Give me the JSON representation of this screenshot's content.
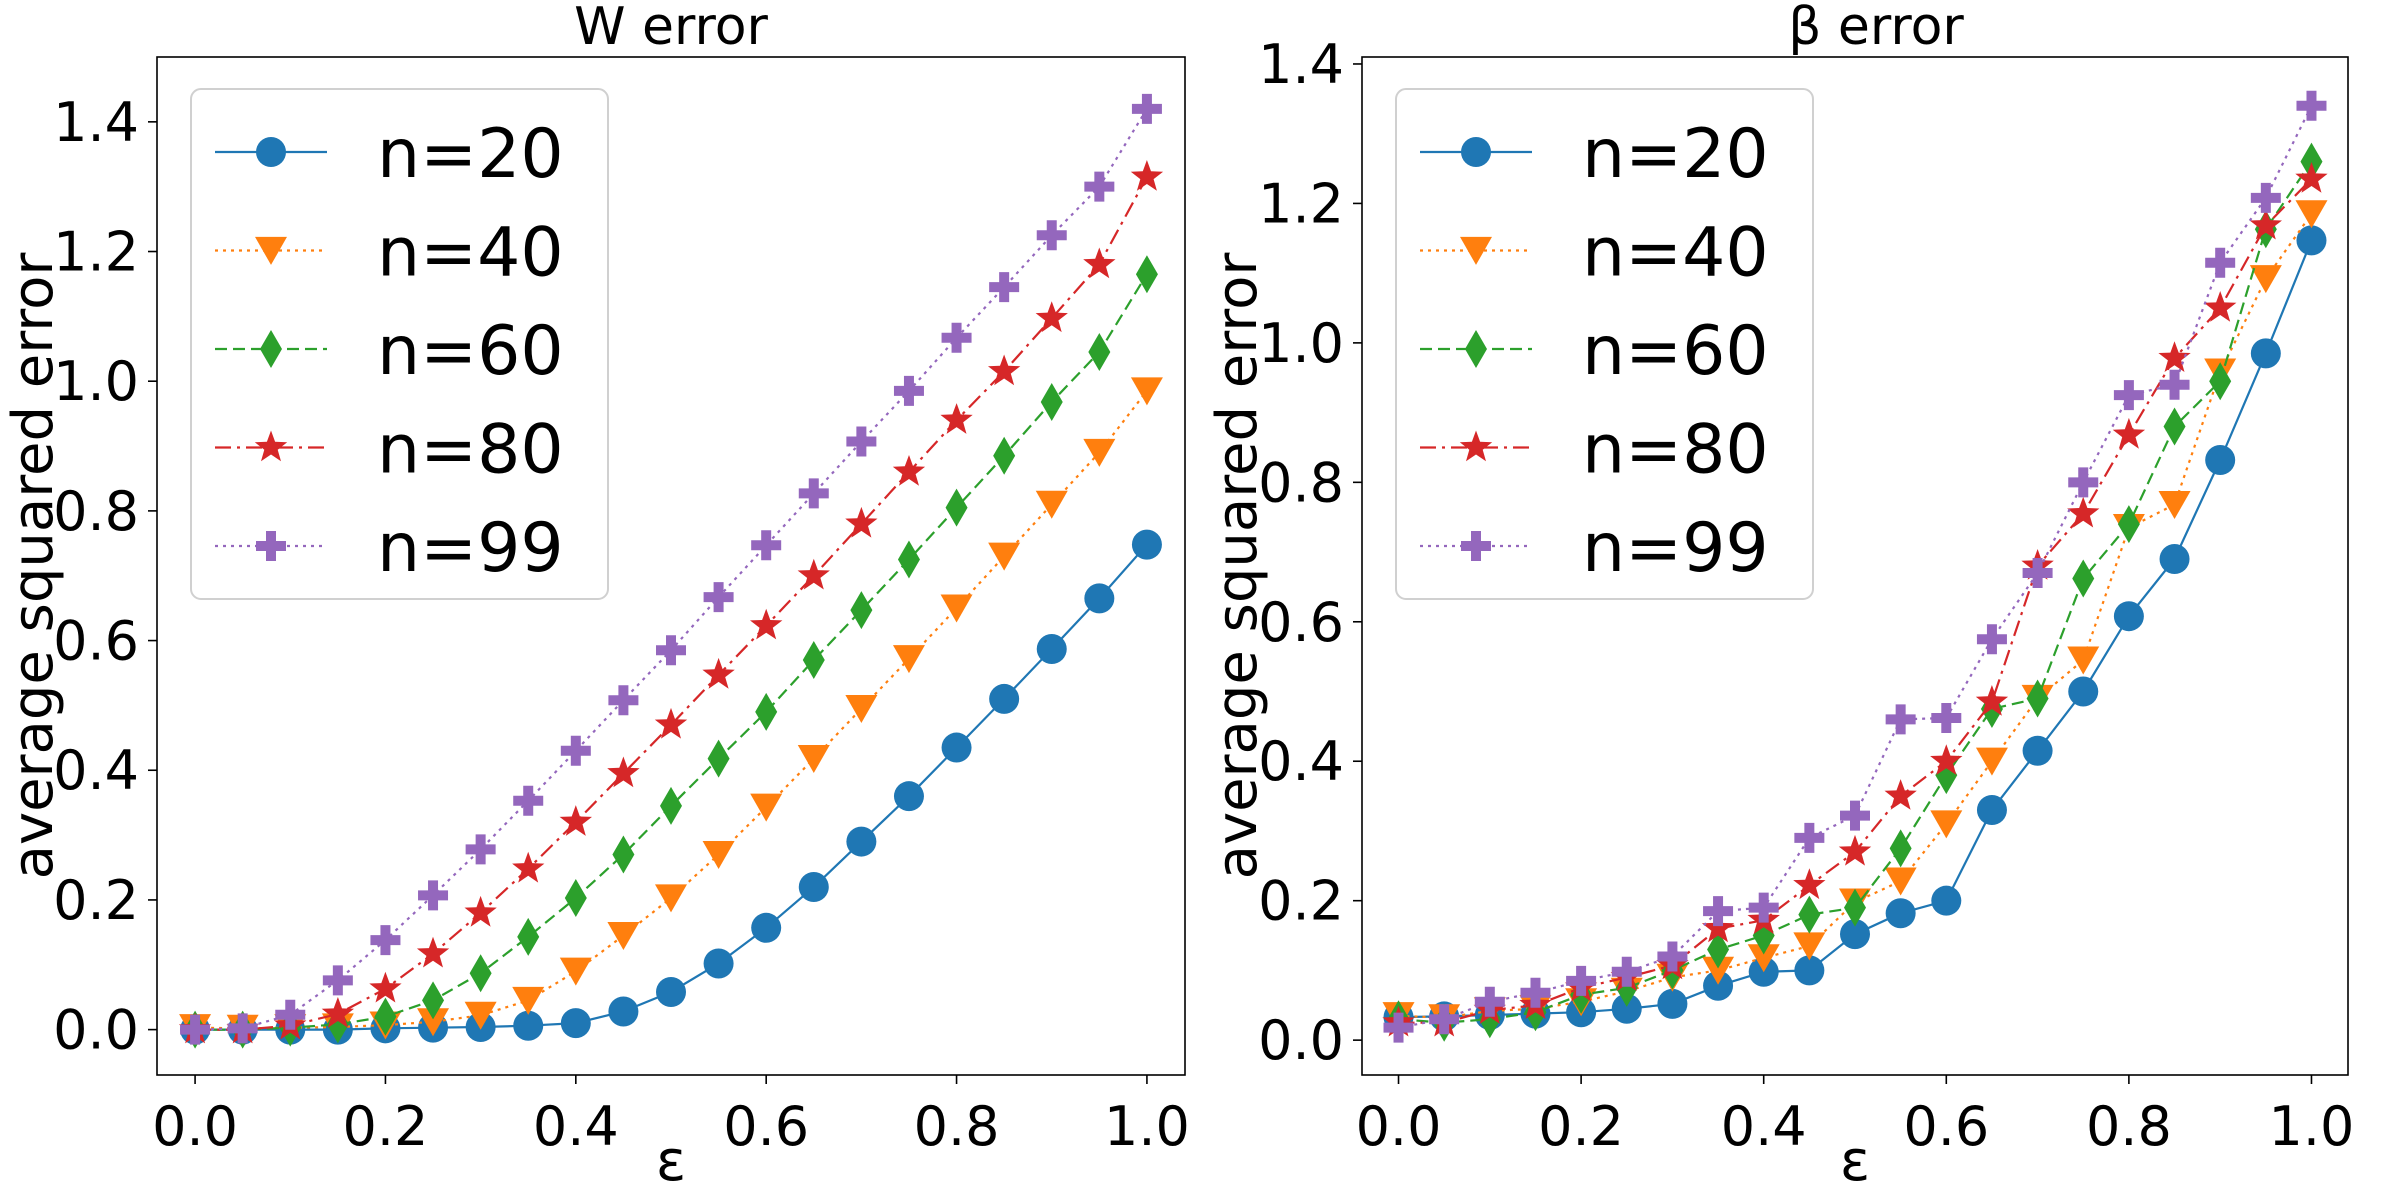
{
  "chart_data": [
    {
      "type": "line",
      "title": "W error",
      "xlabel": "ε",
      "ylabel": "average squared error",
      "xlim": [
        -0.04,
        1.04
      ],
      "ylim": [
        -0.07,
        1.5
      ],
      "xticks": [
        0.0,
        0.2,
        0.4,
        0.6,
        0.8,
        1.0
      ],
      "xtick_labels": [
        "0.0",
        "0.2",
        "0.4",
        "0.6",
        "0.8",
        "1.0"
      ],
      "yticks": [
        0.0,
        0.2,
        0.4,
        0.6,
        0.8,
        1.0,
        1.2,
        1.4
      ],
      "ytick_labels": [
        "0.0",
        "0.2",
        "0.4",
        "0.6",
        "0.8",
        "1.0",
        "1.2",
        "1.4"
      ],
      "grid": false,
      "legend_position": "top-left",
      "x": [
        0.0,
        0.05,
        0.1,
        0.15,
        0.2,
        0.25,
        0.3,
        0.35,
        0.4,
        0.45,
        0.5,
        0.55,
        0.6,
        0.65,
        0.7,
        0.75,
        0.8,
        0.85,
        0.9,
        0.95,
        1.0
      ],
      "series": [
        {
          "name": "n=20",
          "color": "#1f77b4",
          "marker": "circle",
          "linestyle": "solid",
          "values": [
            0.0,
            0.0,
            0.0,
            0.0,
            0.002,
            0.003,
            0.004,
            0.006,
            0.01,
            0.028,
            0.058,
            0.102,
            0.157,
            0.22,
            0.29,
            0.36,
            0.435,
            0.51,
            0.587,
            0.665,
            0.748
          ]
        },
        {
          "name": "n=40",
          "color": "#ff7f0e",
          "marker": "triangle-down",
          "linestyle": "dotted",
          "values": [
            0.003,
            0.002,
            0.003,
            0.004,
            0.007,
            0.012,
            0.022,
            0.045,
            0.09,
            0.145,
            0.203,
            0.27,
            0.343,
            0.418,
            0.495,
            0.572,
            0.65,
            0.73,
            0.81,
            0.89,
            0.985
          ]
        },
        {
          "name": "n=60",
          "color": "#2ca02c",
          "marker": "thin-diamond",
          "linestyle": "dashed",
          "values": [
            0.0,
            0.0,
            0.003,
            0.008,
            0.02,
            0.045,
            0.087,
            0.143,
            0.203,
            0.27,
            0.345,
            0.418,
            0.49,
            0.57,
            0.647,
            0.725,
            0.805,
            0.885,
            0.968,
            1.045,
            1.165
          ]
        },
        {
          "name": "n=80",
          "color": "#d62728",
          "marker": "star",
          "linestyle": "dashdot",
          "values": [
            0.0,
            0.0,
            0.006,
            0.024,
            0.063,
            0.117,
            0.18,
            0.248,
            0.32,
            0.395,
            0.47,
            0.547,
            0.623,
            0.7,
            0.78,
            0.86,
            0.94,
            1.015,
            1.097,
            1.18,
            1.315
          ]
        },
        {
          "name": "n=99",
          "color": "#9467bd",
          "marker": "plus-filled",
          "linestyle": "dotted",
          "values": [
            0.0,
            0.002,
            0.023,
            0.076,
            0.138,
            0.207,
            0.278,
            0.353,
            0.43,
            0.508,
            0.585,
            0.667,
            0.747,
            0.827,
            0.907,
            0.985,
            1.067,
            1.145,
            1.225,
            1.3,
            1.42
          ]
        }
      ]
    },
    {
      "type": "line",
      "title": "β error",
      "xlabel": "ε",
      "ylabel": "average squared error",
      "xlim": [
        -0.04,
        1.04
      ],
      "ylim": [
        -0.05,
        1.41
      ],
      "xticks": [
        0.0,
        0.2,
        0.4,
        0.6,
        0.8,
        1.0
      ],
      "xtick_labels": [
        "0.0",
        "0.2",
        "0.4",
        "0.6",
        "0.8",
        "1.0"
      ],
      "yticks": [
        0.0,
        0.2,
        0.4,
        0.6,
        0.8,
        1.0,
        1.2,
        1.4
      ],
      "ytick_labels": [
        "0.0",
        "0.2",
        "0.4",
        "0.6",
        "0.8",
        "1.0",
        "1.2",
        "1.4"
      ],
      "grid": false,
      "legend_position": "top-left",
      "x": [
        0.0,
        0.05,
        0.1,
        0.15,
        0.2,
        0.25,
        0.3,
        0.35,
        0.4,
        0.45,
        0.5,
        0.55,
        0.6,
        0.65,
        0.7,
        0.75,
        0.8,
        0.85,
        0.9,
        0.95,
        1.0
      ],
      "series": [
        {
          "name": "n=20",
          "color": "#1f77b4",
          "marker": "circle",
          "linestyle": "solid",
          "values": [
            0.033,
            0.034,
            0.036,
            0.038,
            0.04,
            0.045,
            0.052,
            0.078,
            0.098,
            0.1,
            0.152,
            0.182,
            0.2,
            0.33,
            0.415,
            0.5,
            0.608,
            0.69,
            0.832,
            0.985,
            1.147
          ]
        },
        {
          "name": "n=40",
          "color": "#ff7f0e",
          "marker": "triangle-down",
          "linestyle": "dotted",
          "values": [
            0.035,
            0.032,
            0.042,
            0.045,
            0.055,
            0.07,
            0.09,
            0.1,
            0.118,
            0.135,
            0.198,
            0.228,
            0.31,
            0.4,
            0.49,
            0.545,
            0.735,
            0.768,
            0.958,
            1.092,
            1.185
          ]
        },
        {
          "name": "n=60",
          "color": "#2ca02c",
          "marker": "thin-diamond",
          "linestyle": "dashed",
          "values": [
            0.03,
            0.025,
            0.03,
            0.04,
            0.065,
            0.075,
            0.1,
            0.13,
            0.15,
            0.18,
            0.19,
            0.275,
            0.38,
            0.475,
            0.49,
            0.662,
            0.74,
            0.88,
            0.945,
            1.163,
            1.26
          ]
        },
        {
          "name": "n=80",
          "color": "#d62728",
          "marker": "star",
          "linestyle": "dashdot",
          "values": [
            0.025,
            0.025,
            0.043,
            0.05,
            0.075,
            0.09,
            0.107,
            0.16,
            0.172,
            0.222,
            0.27,
            0.35,
            0.4,
            0.485,
            0.68,
            0.755,
            0.868,
            0.978,
            1.05,
            1.168,
            1.235
          ]
        },
        {
          "name": "n=99",
          "color": "#9467bd",
          "marker": "plus-filled",
          "linestyle": "dotted",
          "values": [
            0.018,
            0.03,
            0.055,
            0.068,
            0.085,
            0.098,
            0.12,
            0.185,
            0.19,
            0.29,
            0.322,
            0.46,
            0.462,
            0.575,
            0.67,
            0.8,
            0.925,
            0.94,
            1.115,
            1.208,
            1.34
          ]
        }
      ]
    }
  ]
}
